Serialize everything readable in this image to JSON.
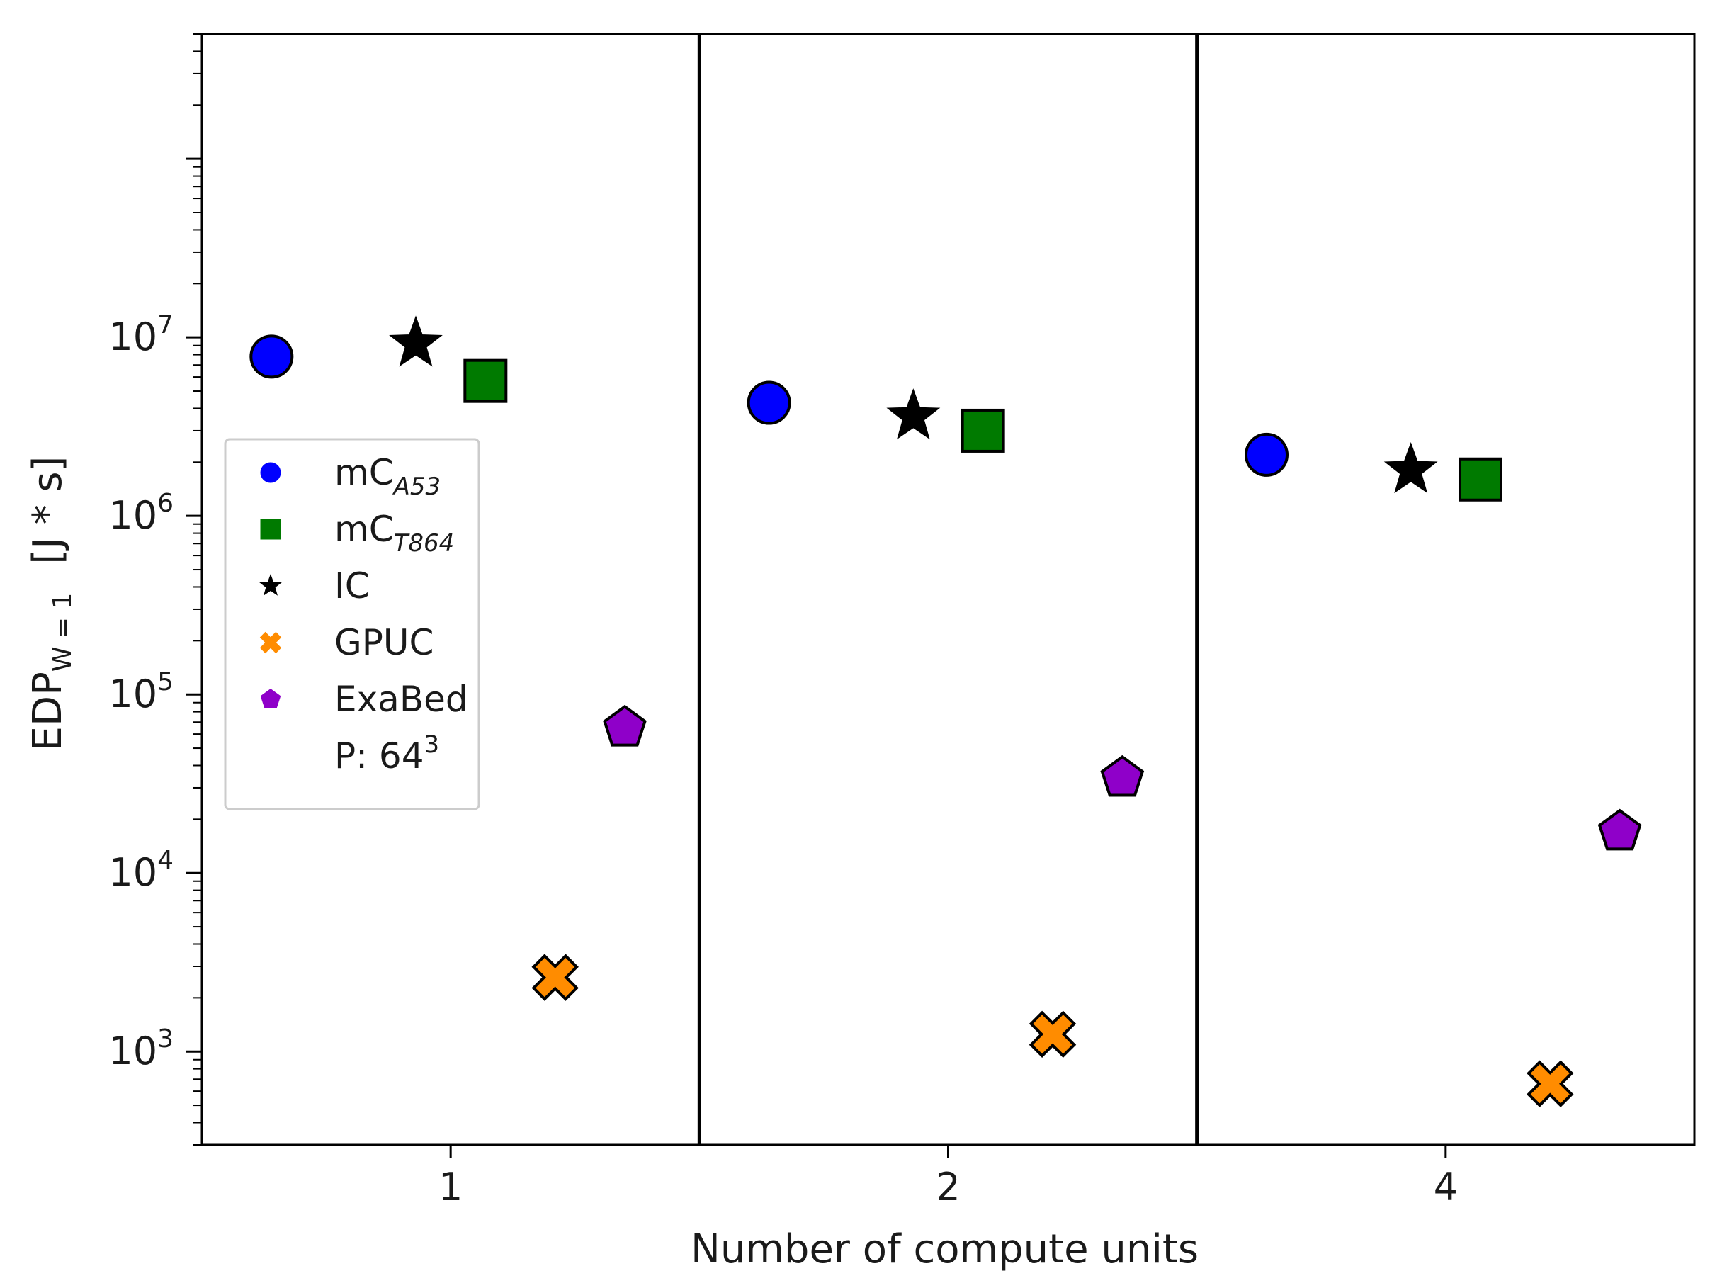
{
  "chart_data": {
    "type": "scatter",
    "title": "",
    "xlabel": "Number of compute units",
    "ylabel": {
      "main": "EDP",
      "sub": "W = 1",
      "unit": "[J * s]"
    },
    "yscale": "log",
    "ylim": [
      300,
      500000000
    ],
    "categories": [
      "1",
      "2",
      "4"
    ],
    "group_width_note": "each category group spans one panel; markers are spread within the panel",
    "series": [
      {
        "name": "mC",
        "name_sub": "A53",
        "marker": "circle",
        "color": "#0000ff",
        "offset": -0.36,
        "values": [
          7800000,
          4300000,
          2200000
        ]
      },
      {
        "name": "mC",
        "name_sub": "T864",
        "marker": "square",
        "color": "#007a00",
        "offset": 0.07,
        "values": [
          5700000,
          3000000,
          1600000
        ]
      },
      {
        "name": "IC",
        "name_sub": "",
        "marker": "star",
        "color": "#000000",
        "offset": -0.07,
        "values": [
          9200000,
          3600000,
          1800000
        ]
      },
      {
        "name": "GPUC",
        "name_sub": "",
        "marker": "x",
        "color": "#ff8c00",
        "offset": 0.21,
        "values": [
          2600,
          1250,
          660
        ]
      },
      {
        "name": "ExaBed",
        "name_sub": "",
        "marker": "pentagon",
        "color": "#8f00c9",
        "offset": 0.35,
        "values": [
          65000,
          34000,
          17000
        ]
      }
    ],
    "legend": {
      "placement": "center-left",
      "extra_label": {
        "text": "P: 64",
        "sup": "3"
      }
    },
    "y_ticks": [
      {
        "base": "10",
        "exp": "3",
        "value": 1000
      },
      {
        "base": "10",
        "exp": "4",
        "value": 10000
      },
      {
        "base": "10",
        "exp": "5",
        "value": 100000
      },
      {
        "base": "10",
        "exp": "6",
        "value": 1000000
      },
      {
        "base": "10",
        "exp": "7",
        "value": 10000000
      }
    ],
    "grid": false
  }
}
